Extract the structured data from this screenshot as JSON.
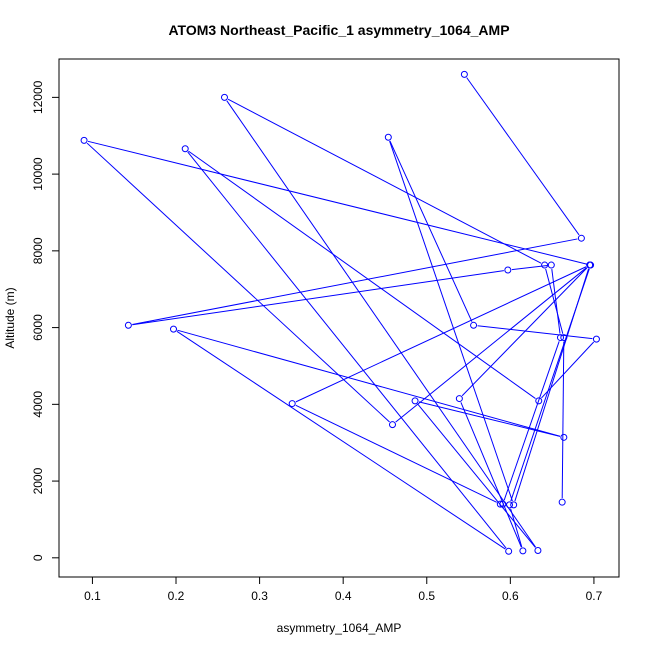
{
  "chart_data": {
    "type": "line",
    "title": "ATOM3 Northeast_Pacific_1 asymmetry_1064_AMP",
    "xlabel": "asymmetry_1064_AMP",
    "ylabel": "Altitude (m)",
    "xlim": [
      0.06,
      0.73
    ],
    "ylim": [
      -500,
      13000
    ],
    "x_ticks": [
      0.1,
      0.2,
      0.3,
      0.4,
      0.5,
      0.6,
      0.7
    ],
    "x_tick_labels": [
      "0.1",
      "0.2",
      "0.3",
      "0.4",
      "0.5",
      "0.6",
      "0.7"
    ],
    "y_ticks": [
      0,
      2000,
      4000,
      6000,
      8000,
      10000,
      12000
    ],
    "y_tick_labels": [
      "0",
      "2000",
      "4000",
      "6000",
      "8000",
      "10000",
      "12000"
    ],
    "grid": false,
    "series": [
      {
        "color": "#0000ff",
        "marker": "open-circle",
        "x": [
          0.545,
          0.685,
          0.143,
          0.597,
          0.649,
          0.66,
          0.591,
          0.588,
          0.339,
          0.695,
          0.459,
          0.09,
          0.696,
          0.599,
          0.615,
          0.539,
          0.695,
          0.604,
          0.454,
          0.556,
          0.703,
          0.634,
          0.211,
          0.598,
          0.197,
          0.664,
          0.486,
          0.633,
          0.258,
          0.641,
          0.664,
          0.662
        ],
        "y": [
          12600,
          8330,
          6060,
          7500,
          7630,
          5740,
          1400,
          1400,
          4020,
          7630,
          3470,
          10880,
          7630,
          1380,
          180,
          4150,
          7630,
          1380,
          10960,
          6060,
          5700,
          4090,
          10660,
          170,
          5960,
          3140,
          4090,
          190,
          12000,
          7630,
          5740,
          1450
        ]
      }
    ]
  }
}
